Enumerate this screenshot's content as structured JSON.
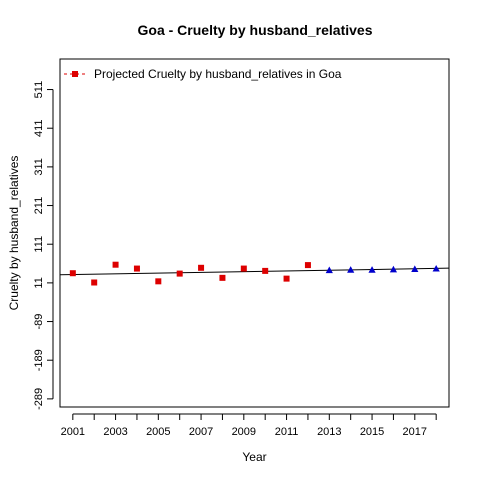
{
  "chart_data": {
    "type": "scatter",
    "title": "Goa  -  Cruelty by husband_relatives",
    "xlabel": "Year",
    "ylabel": "Cruelty by husband_relatives",
    "xlim": [
      2000.4,
      2018.6
    ],
    "ylim": [
      -310,
      590
    ],
    "x_ticks": [
      2001,
      2003,
      2005,
      2007,
      2009,
      2011,
      2013,
      2015,
      2017
    ],
    "x_minor_ticks": [
      2001,
      2002,
      2003,
      2004,
      2005,
      2006,
      2007,
      2008,
      2009,
      2010,
      2011,
      2012,
      2013,
      2014,
      2015,
      2016,
      2017,
      2018
    ],
    "y_ticks": [
      -289,
      -189,
      -89,
      11,
      111,
      211,
      311,
      411,
      511
    ],
    "legend": {
      "position": "top-left",
      "label": "Projected  Cruelty by husband_relatives  in  Goa"
    },
    "series": [
      {
        "role": "actual",
        "color": "#dd0000",
        "marker": "square",
        "x": [
          2001,
          2002,
          2003,
          2004,
          2005,
          2006,
          2007,
          2008,
          2009,
          2010,
          2011,
          2012
        ],
        "y": [
          36,
          12,
          58,
          48,
          15,
          35,
          50,
          24,
          48,
          42,
          22,
          57
        ]
      },
      {
        "role": "projected",
        "color": "#0000cc",
        "marker": "triangle",
        "x": [
          2013,
          2014,
          2015,
          2016,
          2017,
          2018
        ],
        "y": [
          43,
          44,
          44,
          45,
          46,
          47
        ]
      }
    ],
    "trend_line": {
      "color": "#000000",
      "x": [
        2000.4,
        2018.6
      ],
      "y": [
        32,
        49
      ]
    },
    "grid": false
  }
}
